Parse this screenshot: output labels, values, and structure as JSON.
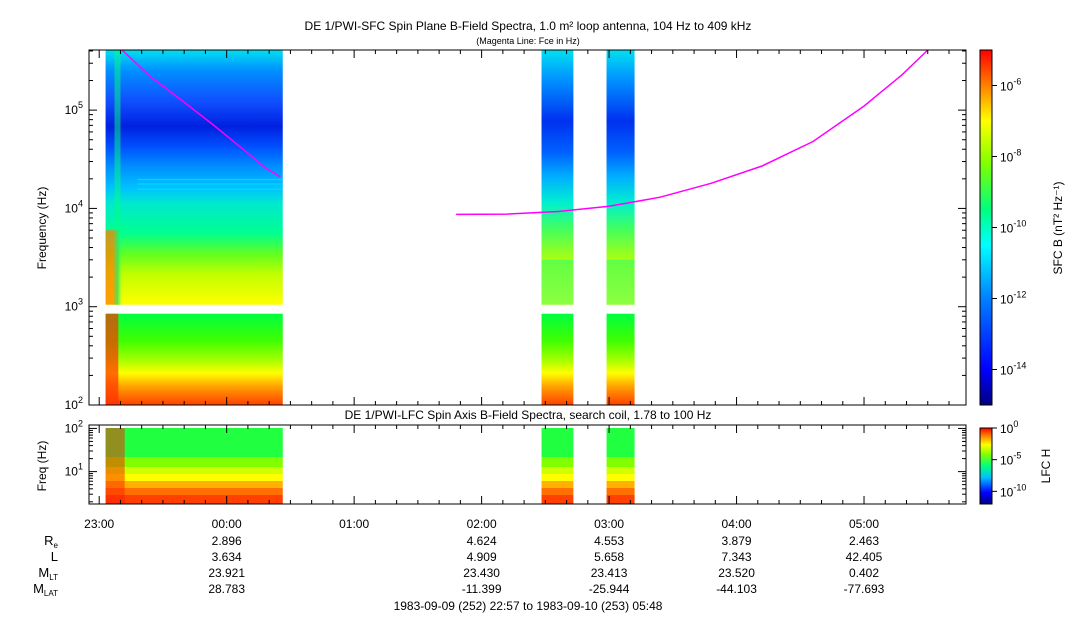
{
  "chart_data": [
    {
      "type": "heatmap",
      "title": "DE 1/PWI-SFC  Spin Plane B-Field Spectra, 1.0 m² loop antenna, 104 Hz to 409 kHz",
      "subtitle": "(Magenta Line: Fce in Hz)",
      "ylabel": "Frequency (Hz)",
      "y_scale": "log",
      "ylim": [
        100,
        409000
      ],
      "y_ticks": [
        {
          "value": 100,
          "base": "10",
          "exp": "2"
        },
        {
          "value": 1000,
          "base": "10",
          "exp": "3"
        },
        {
          "value": 10000,
          "base": "10",
          "exp": "4"
        },
        {
          "value": 100000,
          "base": "10",
          "exp": "5"
        }
      ],
      "colorbar": {
        "label": "SFC B (nT² Hz⁻¹)",
        "scale": "log",
        "range": [
          1e-15,
          1e-05
        ],
        "ticks": [
          {
            "value": 1e-06,
            "base": "10",
            "exp": "-6"
          },
          {
            "value": 1e-08,
            "base": "10",
            "exp": "-8"
          },
          {
            "value": 1e-10,
            "base": "10",
            "exp": "-10"
          },
          {
            "value": 1e-12,
            "base": "10",
            "exp": "-12"
          },
          {
            "value": 1e-14,
            "base": "10",
            "exp": "-14"
          }
        ]
      },
      "data_intervals_hours": [
        [
          -0.95,
          0.44
        ],
        [
          2.47,
          2.72
        ],
        [
          2.98,
          3.2
        ]
      ],
      "fce_line": {
        "color": "#ff00ff",
        "segment1": {
          "x": [
            -0.82,
            -0.6,
            -0.35,
            -0.1,
            0.15,
            0.3,
            0.42
          ],
          "y": [
            409000,
            220000,
            125000,
            70000,
            38000,
            26000,
            21000
          ]
        },
        "segment2": {
          "x": [
            1.8,
            2.2,
            2.6,
            3.0,
            3.4,
            3.8,
            4.2,
            4.6,
            5.0,
            5.3,
            5.5
          ],
          "y": [
            8700,
            8750,
            9300,
            10500,
            13000,
            18000,
            27000,
            48000,
            110000,
            230000,
            409000
          ]
        }
      }
    },
    {
      "type": "heatmap",
      "title": "DE 1/PWI-LFC  Spin Axis B-Field Spectra, search coil, 1.78 to 100 Hz",
      "ylabel": "Freq (Hz)",
      "y_scale": "log",
      "ylim": [
        1.78,
        120
      ],
      "y_ticks": [
        {
          "value": 10,
          "base": "10",
          "exp": "1"
        },
        {
          "value": 100,
          "base": "10",
          "exp": "2"
        }
      ],
      "colorbar": {
        "label": "LFC H",
        "scale": "log",
        "range": [
          1e-12,
          1
        ],
        "ticks": [
          {
            "value": 1,
            "base": "10",
            "exp": "0"
          },
          {
            "value": 1e-05,
            "base": "10",
            "exp": "-5"
          },
          {
            "value": 1e-10,
            "base": "10",
            "exp": "-10"
          }
        ]
      },
      "data_intervals_hours": [
        [
          -0.95,
          0.44
        ],
        [
          2.47,
          2.72
        ],
        [
          2.98,
          3.2
        ]
      ]
    }
  ],
  "time_axis": {
    "range_hours": [
      -1.08,
      5.8
    ],
    "ticks": [
      {
        "hour": -1,
        "label": "23:00"
      },
      {
        "hour": 0,
        "label": "00:00"
      },
      {
        "hour": 1,
        "label": "01:00"
      },
      {
        "hour": 2,
        "label": "02:00"
      },
      {
        "hour": 3,
        "label": "03:00"
      },
      {
        "hour": 4,
        "label": "04:00"
      },
      {
        "hour": 5,
        "label": "05:00"
      }
    ]
  },
  "ephemeris": {
    "rows": [
      {
        "label": "R",
        "sub": "e",
        "values": [
          {
            "hour": 0,
            "text": "2.896"
          },
          {
            "hour": 2,
            "text": "4.624"
          },
          {
            "hour": 3,
            "text": "4.553"
          },
          {
            "hour": 4,
            "text": "3.879"
          },
          {
            "hour": 5,
            "text": "2.463"
          }
        ]
      },
      {
        "label": "L",
        "sub": "",
        "values": [
          {
            "hour": 0,
            "text": "3.634"
          },
          {
            "hour": 2,
            "text": "4.909"
          },
          {
            "hour": 3,
            "text": "5.658"
          },
          {
            "hour": 4,
            "text": "7.343"
          },
          {
            "hour": 5,
            "text": "42.405"
          }
        ]
      },
      {
        "label": "M",
        "sub": "LT",
        "values": [
          {
            "hour": 0,
            "text": "23.921"
          },
          {
            "hour": 2,
            "text": "23.430"
          },
          {
            "hour": 3,
            "text": "23.413"
          },
          {
            "hour": 4,
            "text": "23.520"
          },
          {
            "hour": 5,
            "text": "0.402"
          }
        ]
      },
      {
        "label": "M",
        "sub": "LAT",
        "values": [
          {
            "hour": 0,
            "text": "28.783"
          },
          {
            "hour": 2,
            "text": "-11.399"
          },
          {
            "hour": 3,
            "text": "-25.944"
          },
          {
            "hour": 4,
            "text": "-44.103"
          },
          {
            "hour": 5,
            "text": "-77.693"
          }
        ]
      }
    ]
  },
  "footer": "1983-09-09 (252) 22:57 to 1983-09-10 (253) 05:48"
}
